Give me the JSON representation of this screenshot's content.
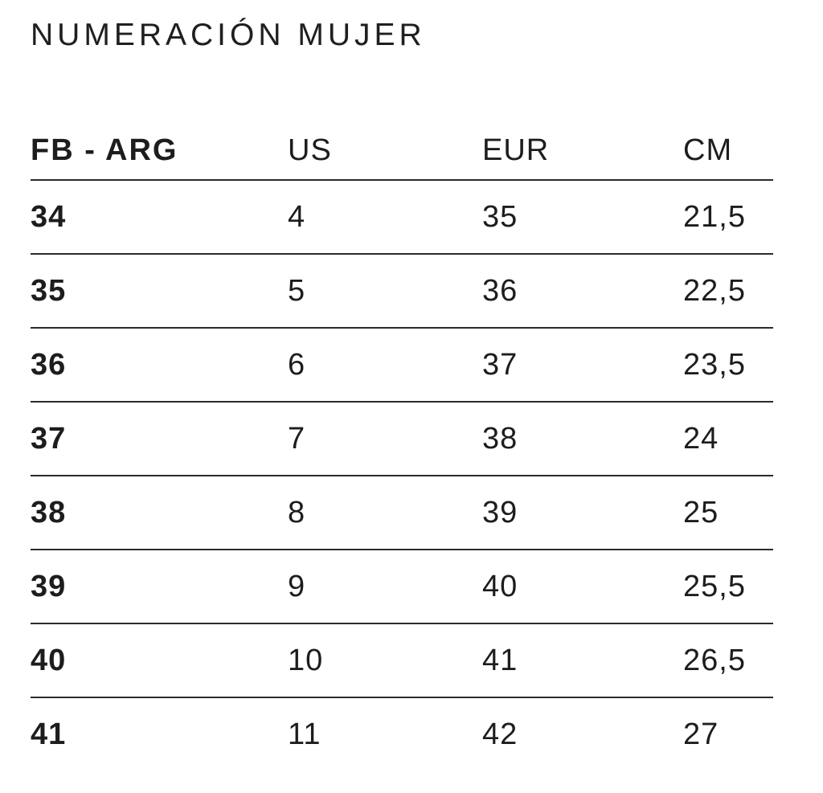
{
  "page": {
    "title": "NUMERACIÓN MUJER"
  },
  "table": {
    "columns": [
      "FB - ARG",
      "US",
      "EUR",
      "CM"
    ],
    "rows": [
      [
        "34",
        "4",
        "35",
        "21,5"
      ],
      [
        "35",
        "5",
        "36",
        "22,5"
      ],
      [
        "36",
        "6",
        "37",
        "23,5"
      ],
      [
        "37",
        "7",
        "38",
        "24"
      ],
      [
        "38",
        "8",
        "39",
        "25"
      ],
      [
        "39",
        "9",
        "40",
        "25,5"
      ],
      [
        "40",
        "10",
        "41",
        "26,5"
      ],
      [
        "41",
        "11",
        "42",
        "27"
      ]
    ]
  },
  "colors": {
    "background": "#ffffff",
    "text": "#1d1d1d",
    "divider": "#2b2b2b"
  }
}
